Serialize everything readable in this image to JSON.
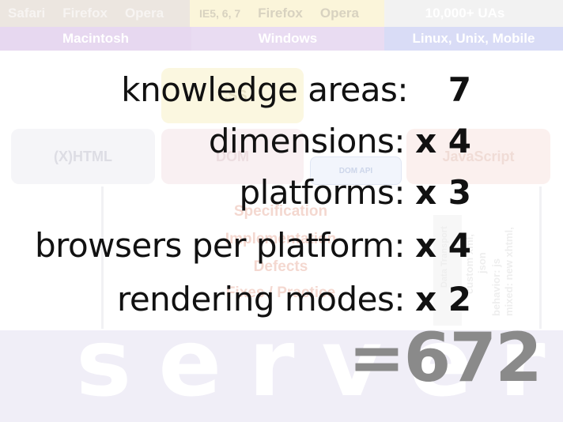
{
  "background": {
    "browsers": {
      "mac": [
        "Safari",
        "Firefox",
        "Opera"
      ],
      "windows": [
        "IE5, 6, 7",
        "Firefox",
        "Opera"
      ],
      "linux": "10,000+ UAs"
    },
    "platforms": [
      "Macintosh",
      "Windows",
      "Linux, Unix, Mobile"
    ],
    "boxes": {
      "css": "CSS",
      "xhtml": "(X)HTML",
      "dom": "DOM",
      "dom_api": "DOM API",
      "javascript": "JavaScript"
    },
    "spec_stack": [
      "Specification",
      "Implementation",
      "Defects",
      "Fixes / Practice"
    ],
    "vertical_labels": [
      "Data Transport",
      "custom xml,",
      "json",
      "behavior: js",
      "mixed: new xhtml,"
    ],
    "server": "server"
  },
  "equation": {
    "rows": [
      {
        "label": "knowledge areas:",
        "value": "7"
      },
      {
        "label": "dimensions:",
        "value": "x 4"
      },
      {
        "label": "platforms:",
        "value": "x 3"
      },
      {
        "label": "browsers per platform:",
        "value": "x 4"
      },
      {
        "label": "rendering modes:",
        "value": "x 2"
      }
    ],
    "total": "=672"
  },
  "colors": {
    "text": "#111111",
    "total": "#8a8a8a",
    "platform_band": "#e7d8f0",
    "server_band": "#f0eef7"
  }
}
